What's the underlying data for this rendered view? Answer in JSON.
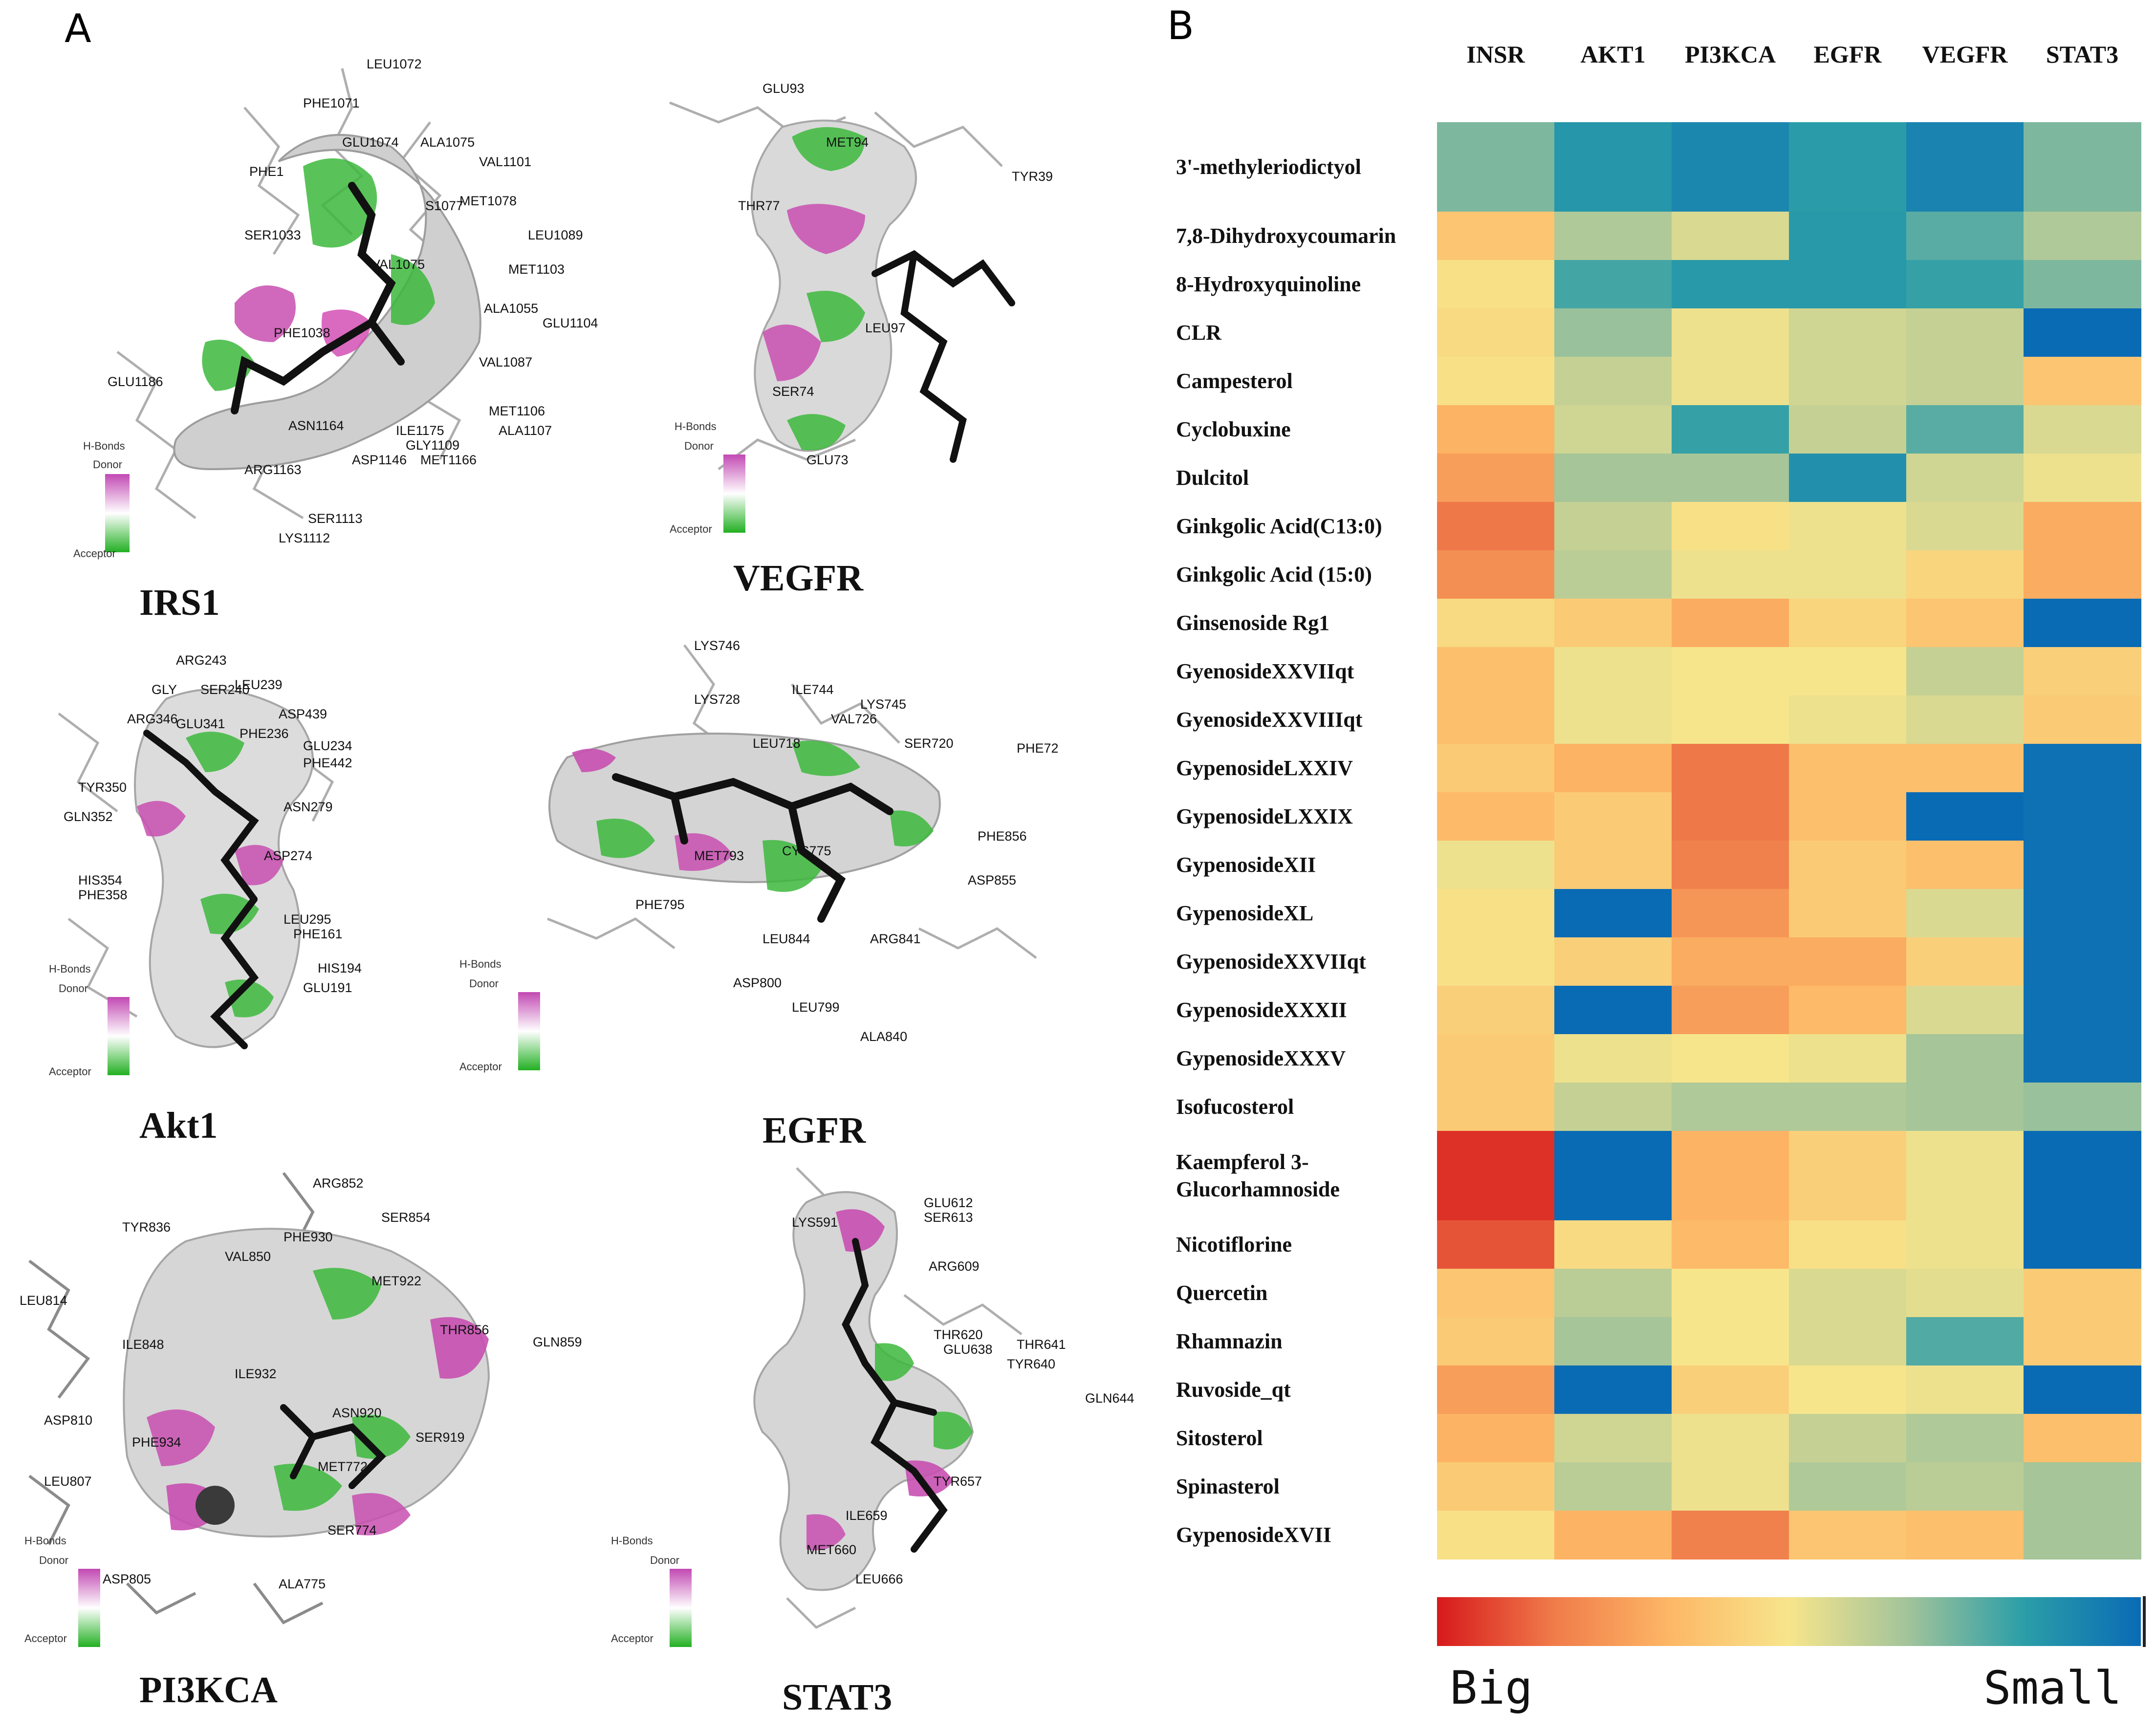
{
  "panels": {
    "a_label": "A",
    "b_label": "B"
  },
  "legend": {
    "title": "H-Bonds",
    "donor": "Donor",
    "acceptor": "Acceptor"
  },
  "docking": [
    {
      "id": "irs1",
      "title": "IRS1",
      "residues": [
        "LEU1072",
        "PHE1071",
        "GLU1074",
        "ALA1075",
        "PHE1",
        "VAL1101",
        "S1077",
        "MET1078",
        "LEU1089",
        "SER1033",
        "VAL1075",
        "MET1103",
        "ALA1055",
        "GLU1104",
        "PHE1038",
        "VAL1087",
        "GLU1186",
        "MET1106",
        "ASN1164",
        "ILE1175",
        "ALA1107",
        "GLY1109",
        "ARG1163",
        "ASP1146",
        "MET1166",
        "SER1113",
        "LYS1112"
      ]
    },
    {
      "id": "vegfr",
      "title": "VEGFR",
      "residues": [
        "GLU93",
        "MET94",
        "TYR39",
        "THR77",
        "LEU97",
        "SER74",
        "GLU73"
      ]
    },
    {
      "id": "akt1",
      "title": "Akt1",
      "residues": [
        "ARG243",
        "GLY",
        "SER240",
        "LEU239",
        "ARG346",
        "GLU341",
        "ASP439",
        "PHE236",
        "GLU234",
        "PHE442",
        "TYR350",
        "ASN279",
        "GLN352",
        "ASP274",
        "HIS354",
        "PHE358",
        "LEU295",
        "PHE161",
        "HIS194",
        "GLU191"
      ]
    },
    {
      "id": "egfr",
      "title": "EGFR",
      "residues": [
        "LYS746",
        "LYS728",
        "ILE744",
        "LYS745",
        "VAL726",
        "LEU718",
        "SER720",
        "PHE72",
        "PHE856",
        "MET793",
        "CYS775",
        "ASP855",
        "PHE795",
        "LEU844",
        "ARG841",
        "ASP800",
        "LEU799",
        "ALA840"
      ]
    },
    {
      "id": "pi3kca",
      "title": "PI3KCA",
      "residues": [
        "ARG852",
        "SER854",
        "TYR836",
        "PHE930",
        "VAL850",
        "MET922",
        "LEU814",
        "THR856",
        "GLN859",
        "ILE848",
        "ILE932",
        "ASN920",
        "ASP810",
        "SER919",
        "PHE934",
        "MET772",
        "LEU807",
        "SER774",
        "ASP805",
        "ALA775"
      ]
    },
    {
      "id": "stat3",
      "title": "STAT3",
      "residues": [
        "GLU612",
        "SER613",
        "LYS591",
        "ARG609",
        "THR620",
        "THR641",
        "GLU638",
        "TYR640",
        "GLN644",
        "TYR657",
        "ILE659",
        "MET660",
        "LEU666"
      ]
    }
  ],
  "chart_data": {
    "type": "heatmap",
    "columns": [
      "INSR",
      "AKT1",
      "PI3KCA",
      "EGFR",
      "VEGFR",
      "STAT3"
    ],
    "rows": [
      "3'-methyleriodictyol",
      "7,8-Dihydroxycoumarin",
      "8-Hydroxyquinoline",
      "CLR",
      "Campesterol",
      "Cyclobuxine",
      "Dulcitol",
      "Ginkgolic Acid(C13:0)",
      "Ginkgolic Acid (15:0)",
      "Ginsenoside Rg1",
      "GyenosideXXVIIqt",
      "GyenosideXXVIIIqt",
      "GypenosideLXXIV",
      "GypenosideLXXIX",
      "GypenosideXII",
      "GypenosideXL",
      "GypenosideXXVIIqt",
      "GypenosideXXXII",
      "GypenosideXXXV",
      "Isofucosterol",
      "Kaempferol 3-Glucorhamnoside",
      "Nicotiflorine",
      "Quercetin",
      "Rhamnazin",
      "Ruvoside_qt",
      "Sitosterol",
      "Spinasterol",
      "GypenosideXVII"
    ],
    "values": [
      [
        0.72,
        0.86,
        0.91,
        0.84,
        0.92,
        0.72
      ],
      [
        0.38,
        0.64,
        0.56,
        0.85,
        0.77,
        0.64
      ],
      [
        0.48,
        0.8,
        0.85,
        0.85,
        0.82,
        0.72
      ],
      [
        0.46,
        0.68,
        0.52,
        0.58,
        0.6,
        1.0
      ],
      [
        0.48,
        0.6,
        0.52,
        0.58,
        0.6,
        0.38
      ],
      [
        0.32,
        0.58,
        0.82,
        0.6,
        0.77,
        0.56
      ],
      [
        0.26,
        0.66,
        0.66,
        0.88,
        0.58,
        0.52
      ],
      [
        0.16,
        0.6,
        0.48,
        0.52,
        0.56,
        0.3
      ],
      [
        0.22,
        0.62,
        0.52,
        0.52,
        0.44,
        0.3
      ],
      [
        0.46,
        0.4,
        0.3,
        0.44,
        0.38,
        1.0
      ],
      [
        0.36,
        0.52,
        0.5,
        0.5,
        0.6,
        0.42
      ],
      [
        0.36,
        0.52,
        0.5,
        0.52,
        0.56,
        0.4
      ],
      [
        0.4,
        0.32,
        0.16,
        0.36,
        0.36,
        0.98
      ],
      [
        0.34,
        0.4,
        0.16,
        0.36,
        1.0,
        0.98
      ],
      [
        0.52,
        0.4,
        0.18,
        0.4,
        0.36,
        0.98
      ],
      [
        0.48,
        1.0,
        0.24,
        0.4,
        0.56,
        0.98
      ],
      [
        0.48,
        0.42,
        0.3,
        0.3,
        0.42,
        0.98
      ],
      [
        0.42,
        1.0,
        0.26,
        0.34,
        0.56,
        0.98
      ],
      [
        0.4,
        0.52,
        0.5,
        0.52,
        0.66,
        0.98
      ],
      [
        0.4,
        0.6,
        0.64,
        0.64,
        0.66,
        0.68
      ],
      [
        0.04,
        1.0,
        0.32,
        0.42,
        0.52,
        1.0
      ],
      [
        0.1,
        0.46,
        0.34,
        0.48,
        0.52,
        1.0
      ],
      [
        0.38,
        0.62,
        0.5,
        0.56,
        0.54,
        0.4
      ],
      [
        0.4,
        0.66,
        0.5,
        0.56,
        0.78,
        0.4
      ],
      [
        0.26,
        1.0,
        0.42,
        0.5,
        0.52,
        1.0
      ],
      [
        0.32,
        0.58,
        0.52,
        0.6,
        0.64,
        0.36
      ],
      [
        0.4,
        0.62,
        0.52,
        0.64,
        0.62,
        0.66
      ],
      [
        0.48,
        0.32,
        0.18,
        0.38,
        0.36,
        0.66
      ]
    ],
    "colorscale": {
      "low_label": "Big",
      "high_label": "Small",
      "stops": [
        "#d7191c",
        "#f07c4a",
        "#fdb866",
        "#f7e58c",
        "#a3c49a",
        "#2b9ea8",
        "#0a6bb5"
      ]
    }
  }
}
